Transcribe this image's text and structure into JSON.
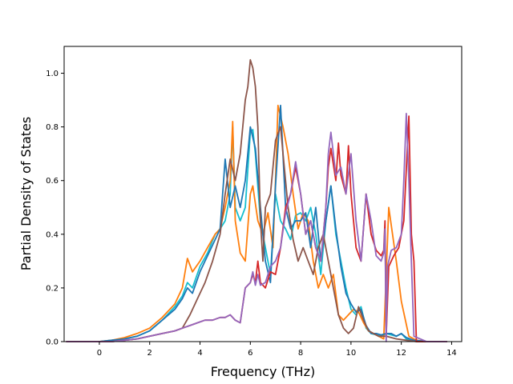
{
  "chart_data": {
    "type": "line",
    "title": "",
    "xlabel": "Frequency (THz)",
    "ylabel": "Partial Density of States",
    "xlim": [
      -1.4,
      14.4
    ],
    "ylim": [
      0.0,
      1.1
    ],
    "xticks": [
      0,
      2,
      4,
      6,
      8,
      10,
      12,
      14
    ],
    "yticks": [
      0.0,
      0.2,
      0.4,
      0.6,
      0.8,
      1.0
    ],
    "xtick_labels": [
      "0",
      "2",
      "4",
      "6",
      "8",
      "10",
      "12",
      "14"
    ],
    "ytick_labels": [
      "0.0",
      "0.2",
      "0.4",
      "0.6",
      "0.8",
      "1.0"
    ],
    "grid": false,
    "legend": "none",
    "series": [
      {
        "color": "#17becf",
        "x": [
          -1.3,
          0,
          0.5,
          1,
          1.5,
          2,
          2.5,
          3,
          3.3,
          3.5,
          3.7,
          4,
          4.3,
          4.6,
          4.8,
          5,
          5.2,
          5.3,
          5.4,
          5.6,
          5.8,
          6,
          6.1,
          6.2,
          6.4,
          6.6,
          6.8,
          7,
          7.2,
          7.4,
          7.6,
          7.8,
          8,
          8.2,
          8.4,
          8.6,
          8.8,
          9,
          9.2,
          9.4,
          9.6,
          9.8,
          10,
          10.2,
          10.4,
          10.6,
          10.8,
          11,
          11.2,
          11.4,
          11.6,
          11.8,
          12,
          12.2,
          12.4,
          12.6,
          13,
          13.8
        ],
        "y": [
          0,
          0,
          0.005,
          0.01,
          0.02,
          0.04,
          0.08,
          0.13,
          0.17,
          0.22,
          0.2,
          0.28,
          0.33,
          0.4,
          0.42,
          0.45,
          0.55,
          0.8,
          0.5,
          0.45,
          0.5,
          0.78,
          0.79,
          0.7,
          0.45,
          0.35,
          0.25,
          0.55,
          0.45,
          0.42,
          0.38,
          0.47,
          0.48,
          0.45,
          0.5,
          0.4,
          0.25,
          0.45,
          0.58,
          0.4,
          0.3,
          0.2,
          0.12,
          0.1,
          0.13,
          0.05,
          0.03,
          0.025,
          0.02,
          0.03,
          0.025,
          0.02,
          0.03,
          0.01,
          0.005,
          0,
          0,
          0
        ]
      },
      {
        "color": "#ff7f0e",
        "x": [
          -1.3,
          0,
          0.5,
          1,
          1.5,
          2,
          2.5,
          3,
          3.3,
          3.5,
          3.7,
          4,
          4.3,
          4.6,
          4.8,
          5,
          5.2,
          5.3,
          5.4,
          5.6,
          5.8,
          6,
          6.1,
          6.3,
          6.5,
          6.7,
          6.9,
          7,
          7.1,
          7.3,
          7.5,
          7.7,
          7.9,
          8.1,
          8.3,
          8.5,
          8.7,
          8.9,
          9.1,
          9.3,
          9.5,
          9.7,
          9.9,
          10.1,
          10.3,
          10.5,
          10.7,
          10.9,
          11.1,
          11.3,
          11.5,
          11.8,
          12,
          12.3,
          12.6,
          13,
          13.8
        ],
        "y": [
          0,
          0,
          0.005,
          0.015,
          0.03,
          0.05,
          0.09,
          0.14,
          0.2,
          0.31,
          0.26,
          0.3,
          0.35,
          0.4,
          0.42,
          0.5,
          0.6,
          0.82,
          0.45,
          0.33,
          0.3,
          0.55,
          0.58,
          0.45,
          0.4,
          0.48,
          0.35,
          0.6,
          0.88,
          0.8,
          0.7,
          0.55,
          0.42,
          0.48,
          0.45,
          0.3,
          0.2,
          0.25,
          0.2,
          0.25,
          0.1,
          0.08,
          0.1,
          0.12,
          0.11,
          0.07,
          0.04,
          0.03,
          0.02,
          0.01,
          0.5,
          0.3,
          0.15,
          0.02,
          0.005,
          0,
          0
        ]
      },
      {
        "color": "#1f77b4",
        "x": [
          -1.3,
          0,
          0.5,
          1,
          1.5,
          2,
          2.5,
          3,
          3.3,
          3.5,
          3.7,
          4,
          4.3,
          4.6,
          4.8,
          5,
          5.2,
          5.4,
          5.6,
          5.8,
          6,
          6.2,
          6.4,
          6.6,
          6.8,
          7,
          7.2,
          7.4,
          7.6,
          7.8,
          8,
          8.2,
          8.4,
          8.6,
          8.8,
          9,
          9.2,
          9.4,
          9.6,
          9.8,
          10,
          10.2,
          10.4,
          10.6,
          10.8,
          11,
          11.2,
          11.4,
          11.6,
          11.8,
          12,
          12.2,
          12.5,
          13,
          13.8
        ],
        "y": [
          0,
          0,
          0.005,
          0.01,
          0.02,
          0.04,
          0.08,
          0.12,
          0.16,
          0.2,
          0.18,
          0.26,
          0.32,
          0.38,
          0.42,
          0.68,
          0.5,
          0.58,
          0.5,
          0.6,
          0.8,
          0.72,
          0.5,
          0.3,
          0.22,
          0.58,
          0.88,
          0.5,
          0.42,
          0.45,
          0.45,
          0.48,
          0.35,
          0.5,
          0.3,
          0.45,
          0.58,
          0.42,
          0.28,
          0.18,
          0.14,
          0.11,
          0.12,
          0.06,
          0.03,
          0.03,
          0.025,
          0.03,
          0.03,
          0.02,
          0.03,
          0.015,
          0.005,
          0,
          0
        ]
      },
      {
        "color": "#8c564b",
        "x": [
          -1.3,
          0,
          0.5,
          1,
          1.5,
          2,
          2.5,
          3,
          3.3,
          3.6,
          3.9,
          4.2,
          4.5,
          4.8,
          5,
          5.2,
          5.4,
          5.6,
          5.8,
          5.9,
          6,
          6.1,
          6.2,
          6.3,
          6.4,
          6.5,
          6.6,
          6.8,
          7,
          7.2,
          7.3,
          7.5,
          7.7,
          7.9,
          8.1,
          8.3,
          8.5,
          8.7,
          8.9,
          9.1,
          9.3,
          9.5,
          9.7,
          9.9,
          10.1,
          10.3,
          10.5,
          10.7,
          10.9,
          11.1,
          11.4,
          11.8,
          12.2,
          12.6,
          13.8
        ],
        "y": [
          0,
          0,
          0,
          0.005,
          0.01,
          0.02,
          0.03,
          0.04,
          0.05,
          0.1,
          0.16,
          0.22,
          0.3,
          0.4,
          0.55,
          0.68,
          0.6,
          0.7,
          0.9,
          0.95,
          1.05,
          1.02,
          0.95,
          0.8,
          0.45,
          0.3,
          0.5,
          0.55,
          0.75,
          0.8,
          0.7,
          0.5,
          0.38,
          0.3,
          0.35,
          0.3,
          0.25,
          0.35,
          0.4,
          0.3,
          0.2,
          0.1,
          0.05,
          0.03,
          0.05,
          0.13,
          0.08,
          0.04,
          0.03,
          0.02,
          0.02,
          0.01,
          0.005,
          0,
          0
        ]
      },
      {
        "color": "#d62728",
        "x": [
          -1.3,
          0,
          0.5,
          1,
          1.5,
          2,
          2.5,
          3,
          3.3,
          3.6,
          3.9,
          4.2,
          4.5,
          4.8,
          5,
          5.2,
          5.4,
          5.6,
          5.8,
          6,
          6.1,
          6.2,
          6.3,
          6.4,
          6.6,
          6.8,
          7,
          7.2,
          7.4,
          7.6,
          7.8,
          8,
          8.2,
          8.4,
          8.6,
          8.8,
          9,
          9.1,
          9.2,
          9.4,
          9.5,
          9.6,
          9.8,
          9.9,
          10,
          10.2,
          10.4,
          10.6,
          10.8,
          11,
          11.2,
          11.3,
          11.35,
          11.4,
          11.5,
          11.7,
          11.9,
          12.1,
          12.3,
          12.4,
          12.5,
          12.6,
          13,
          13.8
        ],
        "y": [
          0,
          0,
          0,
          0.005,
          0.01,
          0.02,
          0.03,
          0.04,
          0.05,
          0.06,
          0.07,
          0.08,
          0.08,
          0.09,
          0.09,
          0.1,
          0.08,
          0.07,
          0.2,
          0.22,
          0.25,
          0.22,
          0.3,
          0.22,
          0.2,
          0.26,
          0.25,
          0.35,
          0.5,
          0.55,
          0.65,
          0.55,
          0.4,
          0.45,
          0.35,
          0.3,
          0.5,
          0.65,
          0.72,
          0.6,
          0.74,
          0.62,
          0.55,
          0.73,
          0.55,
          0.35,
          0.3,
          0.55,
          0.4,
          0.34,
          0.32,
          0.34,
          0.45,
          0.02,
          0.28,
          0.32,
          0.35,
          0.45,
          0.84,
          0.4,
          0.3,
          0,
          0,
          0
        ]
      },
      {
        "color": "#9467bd",
        "x": [
          -1.3,
          0,
          0.5,
          1,
          1.5,
          2,
          2.5,
          3,
          3.3,
          3.6,
          3.9,
          4.2,
          4.5,
          4.8,
          5,
          5.2,
          5.4,
          5.6,
          5.8,
          6,
          6.1,
          6.2,
          6.3,
          6.4,
          6.6,
          6.8,
          7,
          7.2,
          7.4,
          7.6,
          7.8,
          8,
          8.2,
          8.4,
          8.6,
          8.8,
          9,
          9.1,
          9.2,
          9.3,
          9.4,
          9.6,
          9.8,
          10,
          10.2,
          10.4,
          10.6,
          10.8,
          11,
          11.2,
          11.3,
          11.35,
          11.4,
          11.45,
          11.6,
          11.8,
          12,
          12.1,
          12.2,
          12.3,
          12.4,
          12.5,
          13,
          13.8
        ],
        "y": [
          0,
          0,
          0,
          0.005,
          0.01,
          0.02,
          0.03,
          0.04,
          0.05,
          0.06,
          0.07,
          0.08,
          0.08,
          0.09,
          0.09,
          0.1,
          0.08,
          0.07,
          0.2,
          0.22,
          0.26,
          0.21,
          0.25,
          0.21,
          0.22,
          0.28,
          0.3,
          0.35,
          0.48,
          0.55,
          0.67,
          0.55,
          0.4,
          0.45,
          0.35,
          0.3,
          0.5,
          0.7,
          0.78,
          0.7,
          0.62,
          0.65,
          0.55,
          0.7,
          0.45,
          0.3,
          0.55,
          0.45,
          0.32,
          0.3,
          0.33,
          0.42,
          0.0,
          0.28,
          0.34,
          0.35,
          0.4,
          0.6,
          0.85,
          0.6,
          0.3,
          0.02,
          0,
          0
        ]
      }
    ]
  }
}
